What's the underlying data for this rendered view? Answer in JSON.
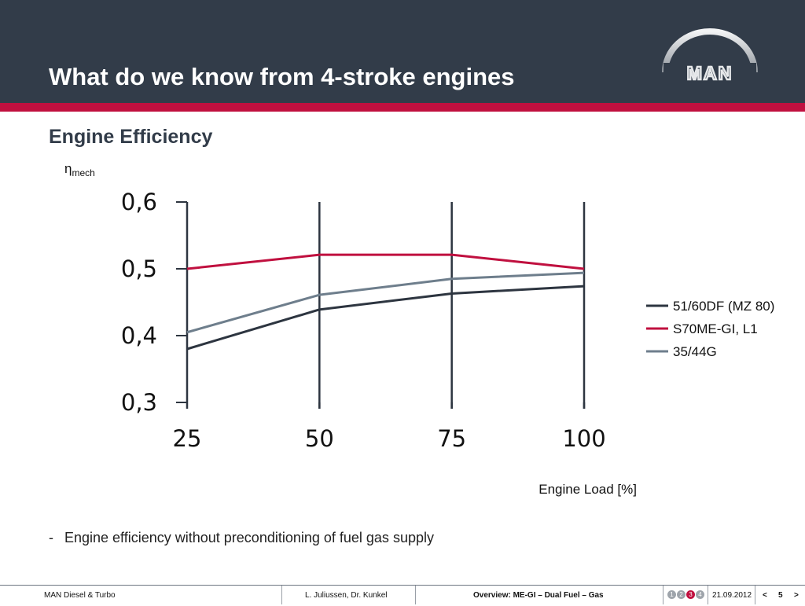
{
  "header": {
    "title": "What do we know from 4-stroke engines",
    "brand_color": "#323c49",
    "accent_color": "#c0103f",
    "logo_text": "MAN"
  },
  "section_title": "Engine Efficiency",
  "chart_data": {
    "type": "line",
    "title": "",
    "ylabel_symbol": "η",
    "ylabel_subscript": "mech",
    "xlabel": "Engine Load [%]",
    "x": [
      25,
      50,
      75,
      100
    ],
    "x_tick_labels": [
      "25",
      "50",
      "75",
      "100"
    ],
    "xlim": [
      25,
      100
    ],
    "ylim": [
      0.3,
      0.6
    ],
    "y_ticks": [
      0.3,
      0.4,
      0.5,
      0.6
    ],
    "y_tick_labels": [
      "0,3",
      "0,4",
      "0,5",
      "0,6"
    ],
    "grid": "vertical",
    "legend_position": "right",
    "series": [
      {
        "name": "51/60DF (MZ 80)",
        "color": "#2d3540",
        "values": [
          0.38,
          0.439,
          0.463,
          0.474
        ]
      },
      {
        "name": "S70ME-GI, L1",
        "color": "#c0103f",
        "values": [
          0.5,
          0.521,
          0.521,
          0.5
        ]
      },
      {
        "name": "35/44G",
        "color": "#6e7e8c",
        "values": [
          0.405,
          0.461,
          0.485,
          0.494
        ]
      }
    ]
  },
  "bullet": {
    "marker": "-",
    "text": "Engine efficiency without preconditioning of fuel gas supply"
  },
  "footer": {
    "company": "MAN Diesel & Turbo",
    "authors": "L. Juliussen, Dr. Kunkel",
    "topic": "Overview: ME-GI – Dual Fuel – Gas",
    "pages": [
      "1",
      "2",
      "3",
      "4"
    ],
    "active_page_index": 2,
    "date": "21.09.2012",
    "prev": "<",
    "page_number": "5",
    "next": ">"
  }
}
